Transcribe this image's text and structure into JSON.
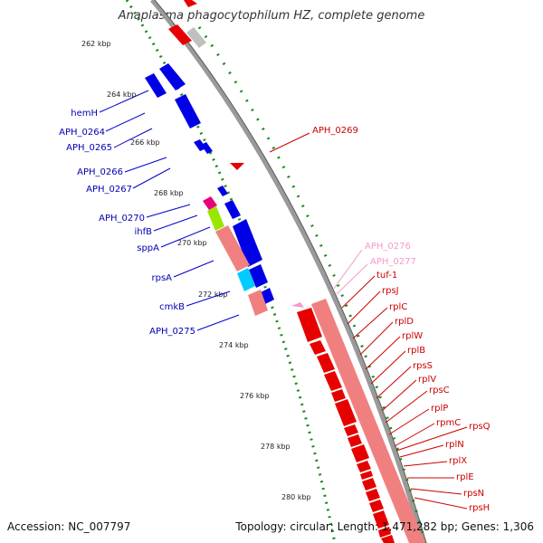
{
  "title": "Anaplasma phagocytophilum HZ, complete genome",
  "footer": {
    "accession": "Accession: NC_007797",
    "stats": "Topology: circular; Length: 1,471,282 bp; Genes: 1,306"
  },
  "scale_labels": [
    "262 kbp",
    "264 kbp",
    "266 kbp",
    "268 kbp",
    "270 kbp",
    "272 kbp",
    "274 kbp",
    "276 kbp",
    "278 kbp",
    "280 kbp"
  ],
  "left_genes": [
    "hemH",
    "APH_0264",
    "APH_0265",
    "APH_0266",
    "APH_0267",
    "APH_0270",
    "ihfB",
    "sppA",
    "rpsA",
    "cmkB",
    "APH_0275"
  ],
  "right_genes_top": [
    "APH_0269"
  ],
  "right_genes_pink": [
    "APH_0276",
    "APH_0277"
  ],
  "right_genes": [
    "tuf-1",
    "rpsJ",
    "rplC",
    "rplD",
    "rplW",
    "rplB",
    "rpsS",
    "rplV",
    "rpsC",
    "rplP",
    "rpmC",
    "rpsQ",
    "rplN",
    "rplX",
    "rplE",
    "rpsN",
    "rpsH"
  ],
  "colors": {
    "forward": "#0000e6",
    "reverse": "#e60000",
    "pink_label": "#f29bcb",
    "backbone": "#999999",
    "scale_tick": "#1a8c1a"
  }
}
